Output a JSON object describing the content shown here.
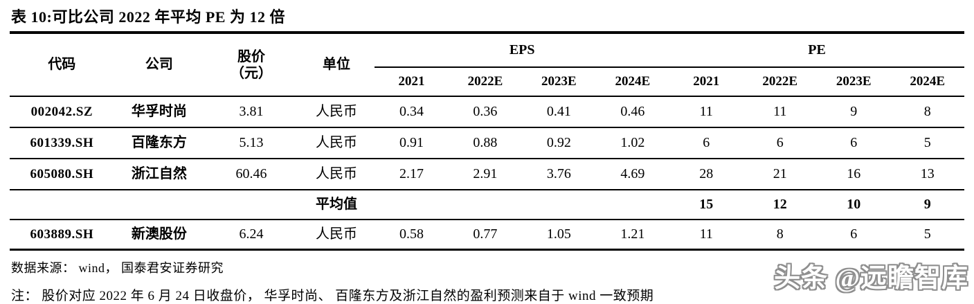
{
  "page": {
    "title": "表 10:可比公司 2022 年平均 PE 为 12 倍"
  },
  "table": {
    "headers": {
      "code": "代码",
      "company": "公司",
      "price_line1": "股价",
      "price_line2": "（元）",
      "unit": "单位"
    },
    "groups": {
      "eps": "EPS",
      "pe": "PE"
    },
    "years": [
      "2021",
      "2022E",
      "2023E",
      "2024E"
    ],
    "rows": [
      {
        "code": "002042.SZ",
        "company": "华孚时尚",
        "price": "3.81",
        "unit": "人民币",
        "eps": [
          "0.34",
          "0.36",
          "0.41",
          "0.46"
        ],
        "pe": [
          "11",
          "11",
          "9",
          "8"
        ]
      },
      {
        "code": "601339.SH",
        "company": "百隆东方",
        "price": "5.13",
        "unit": "人民币",
        "eps": [
          "0.91",
          "0.88",
          "0.92",
          "1.02"
        ],
        "pe": [
          "6",
          "6",
          "6",
          "5"
        ]
      },
      {
        "code": "605080.SH",
        "company": "浙江自然",
        "price": "60.46",
        "unit": "人民币",
        "eps": [
          "2.17",
          "2.91",
          "3.76",
          "4.69"
        ],
        "pe": [
          "28",
          "21",
          "16",
          "13"
        ]
      }
    ],
    "average": {
      "label": "平均值",
      "pe": [
        "15",
        "12",
        "10",
        "9"
      ]
    },
    "extra_row": {
      "code": "603889.SH",
      "company": "新澳股份",
      "price": "6.24",
      "unit": "人民币",
      "eps": [
        "0.58",
        "0.77",
        "1.05",
        "1.21"
      ],
      "pe": [
        "11",
        "8",
        "6",
        "5"
      ]
    }
  },
  "footer": {
    "source": "数据来源： wind， 国泰君安证券研究",
    "note": "注： 股价对应 2022 年 6 月 24 日收盘价， 华孚时尚、 百隆东方及浙江自然的盈利预测来自于 wind 一致预期"
  },
  "watermark": "头条 @远瞻智库"
}
